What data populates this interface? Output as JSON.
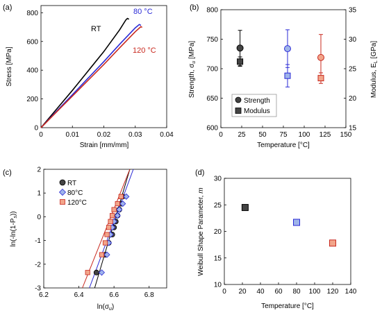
{
  "chart_data": [
    {
      "panel": "(a)",
      "type": "line",
      "xlabel": "Strain [mm/mm]",
      "ylabel": "Stress [MPa]",
      "xlim": [
        0,
        0.04
      ],
      "ylim": [
        0,
        850
      ],
      "xticks": [
        "0",
        "0.01",
        "0.02",
        "0.03",
        "0.04"
      ],
      "yticks": [
        "0",
        "200",
        "400",
        "600",
        "800"
      ],
      "series": [
        {
          "name": "RT",
          "color": "#000000",
          "x": [
            0,
            0.005,
            0.01,
            0.015,
            0.02,
            0.025,
            0.027,
            0.0275,
            0.028
          ],
          "y": [
            0,
            130,
            260,
            395,
            530,
            680,
            750,
            760,
            755
          ]
        },
        {
          "name": "80 °C",
          "color": "#2a2ad6",
          "x": [
            0,
            0.005,
            0.01,
            0.015,
            0.02,
            0.025,
            0.03,
            0.0313,
            0.0318
          ],
          "y": [
            0,
            115,
            230,
            345,
            460,
            580,
            695,
            718,
            712
          ]
        },
        {
          "name": "120 °C",
          "color": "#c8281e",
          "x": [
            0,
            0.005,
            0.01,
            0.015,
            0.02,
            0.025,
            0.03,
            0.0318,
            0.0322
          ],
          "y": [
            0,
            110,
            220,
            330,
            440,
            555,
            668,
            703,
            698
          ]
        }
      ]
    },
    {
      "panel": "(b)",
      "type": "scatter",
      "xlabel": "Temperature [°C]",
      "ylabel_left_main": "Strength, σ",
      "ylabel_left_sub": "u",
      "ylabel_left_unit": " [MPa]",
      "ylabel_right_main": "Modulus, E",
      "ylabel_right_sub": "L",
      "ylabel_right_unit": " [GPa]",
      "xlim": [
        0,
        150
      ],
      "ylim_left": [
        600,
        800
      ],
      "ylim_right": [
        15,
        35
      ],
      "xticks": [
        "0",
        "25",
        "50",
        "75",
        "100",
        "125",
        "150"
      ],
      "yticks_left": [
        "600",
        "650",
        "700",
        "750",
        "800"
      ],
      "yticks_right": [
        "15",
        "20",
        "25",
        "30",
        "35"
      ],
      "legend": [
        "Strength",
        "Modulus"
      ],
      "legend_position": "bottom-left",
      "series": [
        {
          "name": "Strength",
          "marker": "circle",
          "points": [
            {
              "x": 23,
              "y": 735,
              "err": 30,
              "color": "#000000"
            },
            {
              "x": 80,
              "y": 734,
              "err": 32,
              "color": "#2a2ad6"
            },
            {
              "x": 120,
              "y": 719,
              "err": 39,
              "color": "#c8281e"
            }
          ]
        },
        {
          "name": "Modulus",
          "marker": "square",
          "points": [
            {
              "x": 23,
              "y": 26.2,
              "err": 0.8,
              "color": "#000000"
            },
            {
              "x": 80,
              "y": 23.8,
              "err": 1.9,
              "color": "#2a2ad6"
            },
            {
              "x": 120,
              "y": 23.4,
              "err": 0.9,
              "color": "#c8281e"
            }
          ]
        }
      ]
    },
    {
      "panel": "(c)",
      "type": "scatter",
      "xlabel_main": "ln(σ",
      "xlabel_sub": "u",
      "xlabel_end": ")",
      "ylabel_main": "ln(-ln(1-P",
      "ylabel_sub": "s",
      "ylabel_end": "))",
      "xlim": [
        6.2,
        6.9
      ],
      "ylim": [
        -3,
        2
      ],
      "xticks": [
        "6.2",
        "6.4",
        "6.6",
        "6.8"
      ],
      "yticks": [
        "-3",
        "-2",
        "-1",
        "0",
        "1",
        "2"
      ],
      "legend": [
        "RT",
        "80°C",
        "120°C"
      ],
      "legend_position": "top-left",
      "series": [
        {
          "name": "RT",
          "marker": "circle",
          "color": "#000000",
          "x": [
            6.5,
            6.55,
            6.57,
            6.59,
            6.6,
            6.61,
            6.62,
            6.63,
            6.64,
            6.65
          ],
          "y": [
            -2.35,
            -1.6,
            -1.1,
            -0.75,
            -0.45,
            -0.2,
            0.05,
            0.3,
            0.55,
            0.85
          ],
          "fit": {
            "x": [
              6.49,
              6.69
            ],
            "y": [
              -3,
              2
            ]
          }
        },
        {
          "name": "80°C",
          "marker": "diamond",
          "color": "#2a2ad6",
          "x": [
            6.53,
            6.56,
            6.57,
            6.58,
            6.59,
            6.6,
            6.62,
            6.63,
            6.65,
            6.67
          ],
          "y": [
            -2.35,
            -1.6,
            -1.1,
            -0.75,
            -0.45,
            -0.2,
            0.05,
            0.3,
            0.55,
            0.85
          ],
          "fit": {
            "x": [
              6.46,
              6.71
            ],
            "y": [
              -3,
              2
            ]
          }
        },
        {
          "name": "120°C",
          "marker": "square",
          "color": "#c8281e",
          "x": [
            6.45,
            6.53,
            6.55,
            6.56,
            6.57,
            6.58,
            6.59,
            6.6,
            6.62,
            6.64
          ],
          "y": [
            -2.35,
            -1.6,
            -1.1,
            -0.75,
            -0.45,
            -0.2,
            0.05,
            0.3,
            0.55,
            0.85
          ],
          "fit": {
            "x": [
              6.42,
              6.69
            ],
            "y": [
              -3,
              2
            ]
          }
        }
      ]
    },
    {
      "panel": "(d)",
      "type": "scatter",
      "xlabel": "Temperature [°C]",
      "ylabel_main": "Weibull Shape Parameter, ",
      "ylabel_var": "m",
      "xlim": [
        0,
        140
      ],
      "ylim": [
        10,
        30
      ],
      "xticks": [
        "0",
        "20",
        "40",
        "60",
        "80",
        "100",
        "120",
        "140"
      ],
      "yticks": [
        "10",
        "15",
        "20",
        "25",
        "30"
      ],
      "series": [
        {
          "marker": "square",
          "points": [
            {
              "x": 23,
              "y": 24.5,
              "color": "#000000"
            },
            {
              "x": 80,
              "y": 21.7,
              "color": "#2a2ad6"
            },
            {
              "x": 120,
              "y": 17.8,
              "color": "#c8281e"
            }
          ]
        }
      ]
    }
  ]
}
